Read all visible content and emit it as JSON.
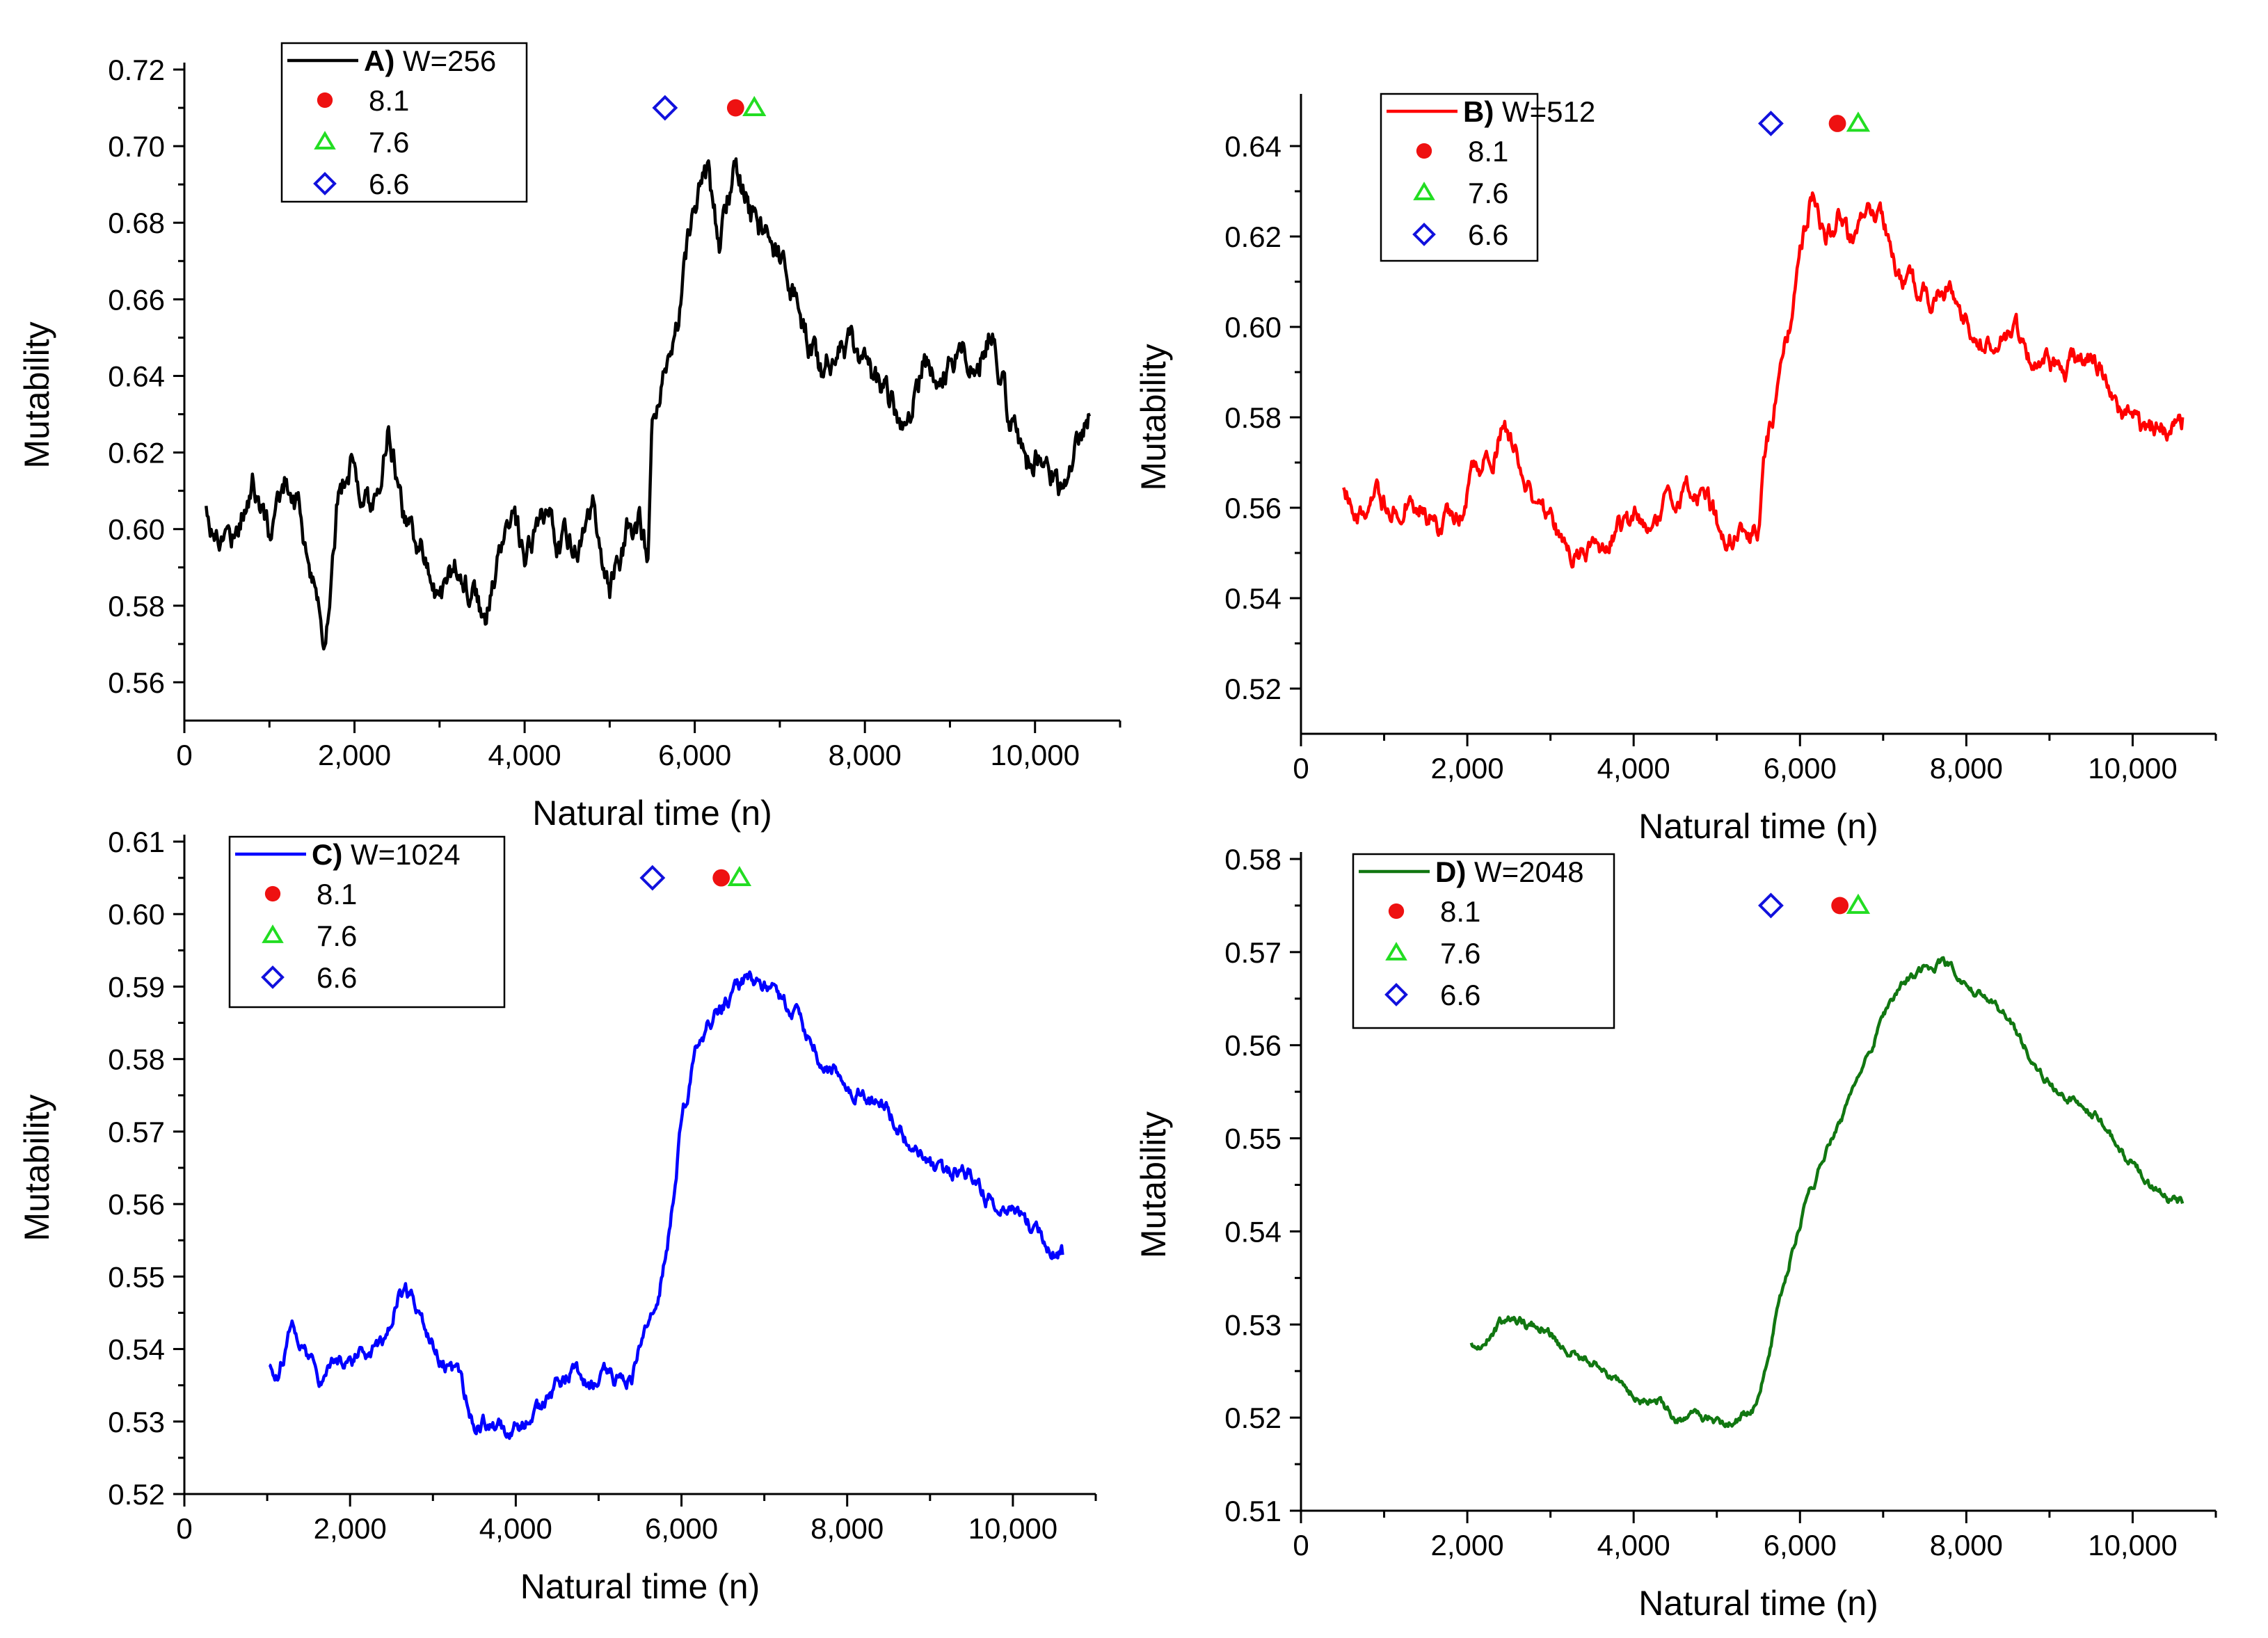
{
  "chart_data": [
    {
      "type": "line",
      "panel": "A",
      "legend_title_bold": "A)",
      "legend_title_rest": " W=256",
      "xlabel": "Natural time (n)",
      "ylabel": "Mutability",
      "xlim": [
        0,
        11000
      ],
      "ylim": [
        0.55,
        0.72
      ],
      "yticks": [
        0.56,
        0.58,
        0.6,
        0.62,
        0.64,
        0.66,
        0.68,
        0.7,
        0.72
      ],
      "ytick_labels": [
        "0.56",
        "0.58",
        "0.60",
        "0.62",
        "0.64",
        "0.66",
        "0.68",
        "0.70",
        "0.72"
      ],
      "xticks": [
        0,
        2000,
        4000,
        6000,
        8000,
        10000
      ],
      "xtick_labels": [
        "0",
        "2,000",
        "4,000",
        "6,000",
        "8,000",
        "10,000"
      ],
      "color": "#000000",
      "legend_position": "top-left",
      "noise": 0.006,
      "series_points": [
        [
          256,
          0.605
        ],
        [
          400,
          0.598
        ],
        [
          600,
          0.6
        ],
        [
          800,
          0.612
        ],
        [
          1000,
          0.598
        ],
        [
          1200,
          0.614
        ],
        [
          1350,
          0.606
        ],
        [
          1500,
          0.585
        ],
        [
          1650,
          0.572
        ],
        [
          1800,
          0.61
        ],
        [
          2000,
          0.618
        ],
        [
          2200,
          0.605
        ],
        [
          2400,
          0.628
        ],
        [
          2600,
          0.602
        ],
        [
          2800,
          0.596
        ],
        [
          3000,
          0.582
        ],
        [
          3200,
          0.59
        ],
        [
          3350,
          0.585
        ],
        [
          3550,
          0.575
        ],
        [
          3700,
          0.592
        ],
        [
          3850,
          0.604
        ],
        [
          4000,
          0.588
        ],
        [
          4200,
          0.6
        ],
        [
          4400,
          0.598
        ],
        [
          4600,
          0.596
        ],
        [
          4800,
          0.604
        ],
        [
          5000,
          0.582
        ],
        [
          5200,
          0.598
        ],
        [
          5350,
          0.602
        ],
        [
          5450,
          0.59
        ],
        [
          5500,
          0.622
        ],
        [
          5650,
          0.638
        ],
        [
          5800,
          0.655
        ],
        [
          6000,
          0.685
        ],
        [
          6150,
          0.69
        ],
        [
          6300,
          0.672
        ],
        [
          6450,
          0.695
        ],
        [
          6600,
          0.686
        ],
        [
          6750,
          0.676
        ],
        [
          6900,
          0.674
        ],
        [
          7100,
          0.668
        ],
        [
          7300,
          0.652
        ],
        [
          7500,
          0.64
        ],
        [
          7700,
          0.65
        ],
        [
          7900,
          0.645
        ],
        [
          8100,
          0.636
        ],
        [
          8300,
          0.632
        ],
        [
          8500,
          0.628
        ],
        [
          8700,
          0.645
        ],
        [
          8900,
          0.638
        ],
        [
          9100,
          0.648
        ],
        [
          9300,
          0.642
        ],
        [
          9500,
          0.655
        ],
        [
          9700,
          0.628
        ],
        [
          9900,
          0.618
        ],
        [
          10100,
          0.622
        ],
        [
          10300,
          0.612
        ],
        [
          10500,
          0.622
        ],
        [
          10650,
          0.63
        ]
      ],
      "events": [
        {
          "label": "8.1",
          "x": 6480,
          "y": 0.71,
          "marker": "circle",
          "color": "#ee1111"
        },
        {
          "label": "7.6",
          "x": 6700,
          "y": 0.71,
          "marker": "triangle",
          "color": "#22dd22"
        },
        {
          "label": "6.6",
          "x": 5650,
          "y": 0.71,
          "marker": "diamond",
          "color": "#1111dd"
        }
      ]
    },
    {
      "type": "line",
      "panel": "B",
      "legend_title_bold": "B)",
      "legend_title_rest": " W=512",
      "xlabel": "Natural time (n)",
      "ylabel": "Mutability",
      "xlim": [
        0,
        11000
      ],
      "ylim": [
        0.51,
        0.65
      ],
      "yticks": [
        0.52,
        0.54,
        0.56,
        0.58,
        0.6,
        0.62,
        0.64
      ],
      "ytick_labels": [
        "0.52",
        "0.54",
        "0.56",
        "0.58",
        "0.60",
        "0.62",
        "0.64"
      ],
      "xticks": [
        0,
        2000,
        4000,
        6000,
        8000,
        10000
      ],
      "xtick_labels": [
        "0",
        "2,000",
        "4,000",
        "6,000",
        "8,000",
        "10,000"
      ],
      "color": "#ff0000",
      "legend_position": "top-left",
      "noise": 0.0035,
      "series_points": [
        [
          512,
          0.566
        ],
        [
          700,
          0.56
        ],
        [
          900,
          0.562
        ],
        [
          1100,
          0.56
        ],
        [
          1300,
          0.564
        ],
        [
          1500,
          0.56
        ],
        [
          1700,
          0.555
        ],
        [
          1900,
          0.56
        ],
        [
          2100,
          0.568
        ],
        [
          2300,
          0.572
        ],
        [
          2450,
          0.579
        ],
        [
          2600,
          0.57
        ],
        [
          2800,
          0.56
        ],
        [
          3000,
          0.556
        ],
        [
          3200,
          0.55
        ],
        [
          3400,
          0.548
        ],
        [
          3600,
          0.55
        ],
        [
          3800,
          0.555
        ],
        [
          4000,
          0.556
        ],
        [
          4200,
          0.558
        ],
        [
          4400,
          0.56
        ],
        [
          4600,
          0.562
        ],
        [
          4800,
          0.565
        ],
        [
          5000,
          0.556
        ],
        [
          5200,
          0.555
        ],
        [
          5400,
          0.554
        ],
        [
          5500,
          0.556
        ],
        [
          5600,
          0.575
        ],
        [
          5800,
          0.59
        ],
        [
          6000,
          0.615
        ],
        [
          6150,
          0.63
        ],
        [
          6300,
          0.622
        ],
        [
          6450,
          0.625
        ],
        [
          6600,
          0.618
        ],
        [
          6800,
          0.628
        ],
        [
          7000,
          0.622
        ],
        [
          7200,
          0.612
        ],
        [
          7400,
          0.608
        ],
        [
          7600,
          0.605
        ],
        [
          7800,
          0.61
        ],
        [
          8000,
          0.602
        ],
        [
          8200,
          0.598
        ],
        [
          8400,
          0.595
        ],
        [
          8600,
          0.598
        ],
        [
          8800,
          0.59
        ],
        [
          9000,
          0.592
        ],
        [
          9200,
          0.59
        ],
        [
          9400,
          0.594
        ],
        [
          9600,
          0.592
        ],
        [
          9800,
          0.584
        ],
        [
          10000,
          0.578
        ],
        [
          10200,
          0.577
        ],
        [
          10400,
          0.578
        ],
        [
          10600,
          0.58
        ]
      ],
      "events": [
        {
          "label": "8.1",
          "x": 6450,
          "y": 0.645,
          "marker": "circle",
          "color": "#ee1111"
        },
        {
          "label": "7.6",
          "x": 6700,
          "y": 0.645,
          "marker": "triangle",
          "color": "#22dd22"
        },
        {
          "label": "6.6",
          "x": 5650,
          "y": 0.645,
          "marker": "diamond",
          "color": "#1111dd"
        }
      ]
    },
    {
      "type": "line",
      "panel": "C",
      "legend_title_bold": "C)",
      "legend_title_rest": "  W=1024",
      "xlabel": "Natural time (n)",
      "ylabel": "Mutability",
      "xlim": [
        0,
        11000
      ],
      "ylim": [
        0.52,
        0.61
      ],
      "yticks": [
        0.52,
        0.53,
        0.54,
        0.55,
        0.56,
        0.57,
        0.58,
        0.59,
        0.6,
        0.61
      ],
      "ytick_labels": [
        "0.52",
        "0.53",
        "0.54",
        "0.55",
        "0.56",
        "0.57",
        "0.58",
        "0.59",
        "0.60",
        "0.61"
      ],
      "xticks": [
        0,
        2000,
        4000,
        6000,
        8000,
        10000
      ],
      "xtick_labels": [
        "0",
        "2,000",
        "4,000",
        "6,000",
        "8,000",
        "10,000"
      ],
      "color": "#0000ff",
      "legend_position": "top-left",
      "noise": 0.0016,
      "series_points": [
        [
          1024,
          0.538
        ],
        [
          1150,
          0.537
        ],
        [
          1300,
          0.543
        ],
        [
          1450,
          0.54
        ],
        [
          1650,
          0.535
        ],
        [
          1800,
          0.538
        ],
        [
          2000,
          0.539
        ],
        [
          2200,
          0.54
        ],
        [
          2400,
          0.541
        ],
        [
          2600,
          0.548
        ],
        [
          2750,
          0.547
        ],
        [
          2900,
          0.543
        ],
        [
          3100,
          0.539
        ],
        [
          3300,
          0.536
        ],
        [
          3500,
          0.53
        ],
        [
          3700,
          0.53
        ],
        [
          3900,
          0.528
        ],
        [
          4100,
          0.53
        ],
        [
          4300,
          0.531
        ],
        [
          4500,
          0.535
        ],
        [
          4700,
          0.537
        ],
        [
          4900,
          0.535
        ],
        [
          5100,
          0.536
        ],
        [
          5300,
          0.535
        ],
        [
          5400,
          0.536
        ],
        [
          5500,
          0.54
        ],
        [
          5700,
          0.545
        ],
        [
          5900,
          0.56
        ],
        [
          6000,
          0.572
        ],
        [
          6200,
          0.582
        ],
        [
          6400,
          0.586
        ],
        [
          6600,
          0.589
        ],
        [
          6800,
          0.591
        ],
        [
          7000,
          0.59
        ],
        [
          7200,
          0.588
        ],
        [
          7400,
          0.586
        ],
        [
          7600,
          0.582
        ],
        [
          7800,
          0.578
        ],
        [
          8000,
          0.577
        ],
        [
          8200,
          0.575
        ],
        [
          8400,
          0.573
        ],
        [
          8600,
          0.571
        ],
        [
          8800,
          0.567
        ],
        [
          9000,
          0.565
        ],
        [
          9200,
          0.563
        ],
        [
          9400,
          0.565
        ],
        [
          9600,
          0.562
        ],
        [
          9800,
          0.56
        ],
        [
          10000,
          0.559
        ],
        [
          10200,
          0.557
        ],
        [
          10400,
          0.555
        ],
        [
          10600,
          0.553
        ]
      ],
      "events": [
        {
          "label": "8.1",
          "x": 6480,
          "y": 0.605,
          "marker": "circle",
          "color": "#ee1111"
        },
        {
          "label": "7.6",
          "x": 6700,
          "y": 0.605,
          "marker": "triangle",
          "color": "#22dd22"
        },
        {
          "label": "6.6",
          "x": 5650,
          "y": 0.605,
          "marker": "diamond",
          "color": "#1111dd"
        }
      ]
    },
    {
      "type": "line",
      "panel": "D",
      "legend_title_bold": "D)",
      "legend_title_rest": " W=2048",
      "xlabel": "Natural time (n)",
      "ylabel": "Mutability",
      "xlim": [
        0,
        11000
      ],
      "ylim": [
        0.51,
        0.58
      ],
      "yticks": [
        0.51,
        0.52,
        0.53,
        0.54,
        0.55,
        0.56,
        0.57,
        0.58
      ],
      "ytick_labels": [
        "0.51",
        "0.52",
        "0.53",
        "0.54",
        "0.55",
        "0.56",
        "0.57",
        "0.58"
      ],
      "xticks": [
        0,
        2000,
        4000,
        6000,
        8000,
        10000
      ],
      "xtick_labels": [
        "0",
        "2,000",
        "4,000",
        "6,000",
        "8,000",
        "10,000"
      ],
      "color": "#117711",
      "legend_position": "top-left",
      "noise": 0.0007,
      "series_points": [
        [
          2048,
          0.528
        ],
        [
          2200,
          0.528
        ],
        [
          2400,
          0.53
        ],
        [
          2550,
          0.531
        ],
        [
          2700,
          0.53
        ],
        [
          2900,
          0.53
        ],
        [
          3100,
          0.528
        ],
        [
          3300,
          0.527
        ],
        [
          3500,
          0.526
        ],
        [
          3700,
          0.525
        ],
        [
          3900,
          0.523
        ],
        [
          4100,
          0.522
        ],
        [
          4300,
          0.522
        ],
        [
          4500,
          0.52
        ],
        [
          4700,
          0.52
        ],
        [
          4900,
          0.52
        ],
        [
          5100,
          0.519
        ],
        [
          5300,
          0.52
        ],
        [
          5450,
          0.521
        ],
        [
          5550,
          0.524
        ],
        [
          5700,
          0.53
        ],
        [
          5900,
          0.538
        ],
        [
          6100,
          0.544
        ],
        [
          6300,
          0.548
        ],
        [
          6500,
          0.552
        ],
        [
          6700,
          0.557
        ],
        [
          6900,
          0.561
        ],
        [
          7100,
          0.565
        ],
        [
          7300,
          0.567
        ],
        [
          7500,
          0.568
        ],
        [
          7700,
          0.569
        ],
        [
          7900,
          0.568
        ],
        [
          8100,
          0.566
        ],
        [
          8300,
          0.565
        ],
        [
          8500,
          0.563
        ],
        [
          8700,
          0.56
        ],
        [
          8900,
          0.557
        ],
        [
          9100,
          0.555
        ],
        [
          9300,
          0.554
        ],
        [
          9500,
          0.553
        ],
        [
          9700,
          0.551
        ],
        [
          9900,
          0.548
        ],
        [
          10100,
          0.546
        ],
        [
          10300,
          0.544
        ],
        [
          10500,
          0.543
        ],
        [
          10600,
          0.543
        ]
      ],
      "events": [
        {
          "label": "8.1",
          "x": 6480,
          "y": 0.575,
          "marker": "circle",
          "color": "#ee1111"
        },
        {
          "label": "7.6",
          "x": 6700,
          "y": 0.575,
          "marker": "triangle",
          "color": "#22dd22"
        },
        {
          "label": "6.6",
          "x": 5650,
          "y": 0.575,
          "marker": "diamond",
          "color": "#1111dd"
        }
      ]
    }
  ]
}
